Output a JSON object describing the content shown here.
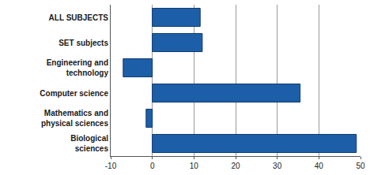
{
  "chart_data": {
    "type": "bar",
    "orientation": "horizontal",
    "categories": [
      "ALL SUBJECTS",
      "SET subjects",
      "Engineering and technology",
      "Computer science",
      "Mathematics and physical sciences",
      "Biological sciences"
    ],
    "values": [
      11.5,
      12,
      -7,
      35.5,
      -1.5,
      49
    ],
    "color": "#1d5ea8",
    "xlim": [
      -10,
      50
    ],
    "xticks": [
      -10,
      0,
      10,
      20,
      30,
      40,
      50
    ],
    "grid": true
  }
}
